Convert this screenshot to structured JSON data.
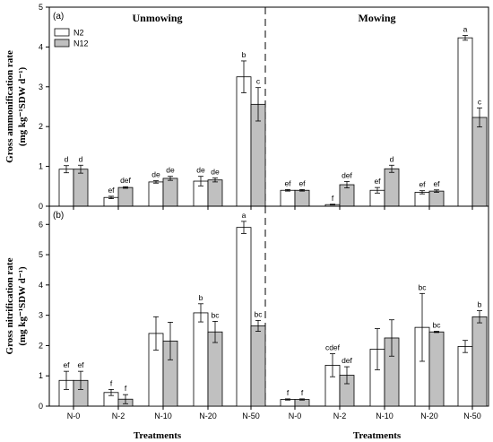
{
  "chart_data": [
    {
      "type": "bar",
      "panel_label": "(a)",
      "ylabel": "Gross ammonification rate (mg kg⁻¹SDW d⁻¹)",
      "ylim": [
        0,
        5
      ],
      "yticks": [
        "0",
        "1",
        "2",
        "3",
        "4",
        "5"
      ],
      "groups": [
        {
          "title": "Unmowing",
          "categories": [
            "N-0",
            "N-2",
            "N-10",
            "N-20",
            "N-50"
          ],
          "series": [
            {
              "name": "N2",
              "values": [
                0.93,
                0.22,
                0.61,
                0.63,
                3.25
              ],
              "errors": [
                0.09,
                0.03,
                0.03,
                0.12,
                0.4
              ],
              "letters": [
                "d",
                "ef",
                "de",
                "de",
                "b"
              ]
            },
            {
              "name": "N12",
              "values": [
                0.93,
                0.47,
                0.7,
                0.66,
                2.56
              ],
              "errors": [
                0.1,
                0.02,
                0.05,
                0.05,
                0.42
              ],
              "letters": [
                "d",
                "def",
                "de",
                "de",
                "c"
              ]
            }
          ]
        },
        {
          "title": "Mowing",
          "categories": [
            "N-0",
            "N-2",
            "N-10",
            "N-20",
            "N-50"
          ],
          "series": [
            {
              "name": "N2",
              "values": [
                0.4,
                0.04,
                0.4,
                0.35,
                4.23
              ],
              "errors": [
                0.02,
                0.01,
                0.07,
                0.04,
                0.06
              ],
              "letters": [
                "ef",
                "f",
                "ef",
                "ef",
                "a"
              ]
            },
            {
              "name": "N12",
              "values": [
                0.4,
                0.54,
                0.94,
                0.38,
                2.23
              ],
              "errors": [
                0.02,
                0.08,
                0.09,
                0.03,
                0.24
              ],
              "letters": [
                "ef",
                "def",
                "d",
                "ef",
                "c"
              ]
            }
          ]
        }
      ],
      "legend": [
        "N2",
        "N12"
      ],
      "legend_position": "top-left"
    },
    {
      "type": "bar",
      "panel_label": "(b)",
      "ylabel": "Gross nitrification rate (mg kg⁻¹SDW d⁻¹)",
      "ylim": [
        0,
        6.6
      ],
      "yticks": [
        "0",
        "1",
        "2",
        "3",
        "4",
        "5",
        "6"
      ],
      "xlabel": "Treatments",
      "groups": [
        {
          "title": "",
          "categories": [
            "N-0",
            "N-2",
            "N-10",
            "N-20",
            "N-50"
          ],
          "series": [
            {
              "name": "N2",
              "values": [
                0.85,
                0.45,
                2.4,
                3.08,
                5.9
              ],
              "errors": [
                0.3,
                0.1,
                0.55,
                0.3,
                0.2
              ],
              "letters": [
                "ef",
                "f",
                "",
                "b",
                "a"
              ]
            },
            {
              "name": "N12",
              "values": [
                0.85,
                0.23,
                2.15,
                2.45,
                2.65
              ],
              "errors": [
                0.3,
                0.15,
                0.62,
                0.35,
                0.18
              ],
              "letters": [
                "ef",
                "f",
                "",
                "bc",
                "bc"
              ]
            }
          ]
        },
        {
          "title": "",
          "categories": [
            "N-0",
            "N-2",
            "N-10",
            "N-20",
            "N-50"
          ],
          "series": [
            {
              "name": "N2",
              "values": [
                0.22,
                1.35,
                1.88,
                2.6,
                1.97
              ],
              "errors": [
                0.02,
                0.38,
                0.68,
                1.12,
                0.2
              ],
              "letters": [
                "f",
                "cdef",
                "",
                "bc",
                ""
              ]
            },
            {
              "name": "N12",
              "values": [
                0.22,
                1.02,
                2.25,
                2.45,
                2.95
              ],
              "errors": [
                0.02,
                0.28,
                0.6,
                0.02,
                0.2
              ],
              "letters": [
                "f",
                "def",
                "",
                "bc",
                "b"
              ]
            }
          ]
        }
      ]
    }
  ],
  "colors": {
    "N2": "#ffffff",
    "N12": "#c0c0c0"
  }
}
